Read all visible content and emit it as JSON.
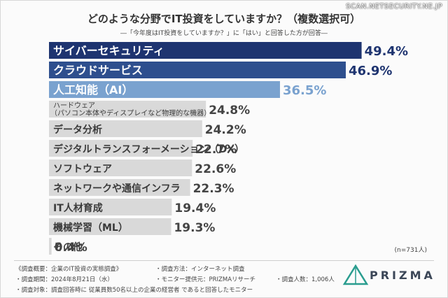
{
  "watermark": "SCAN.NETSECURITY.NE.JP",
  "chart_data": {
    "type": "bar",
    "orientation": "horizontal",
    "title": "どのような分野でIT投資をしていますか？（複数選択可）",
    "subtitle": "―「今年度はIT投資をしていますか？」に「はい」と回答した方が回答―",
    "categories": [
      "サイバーセキュリティ",
      "クラウドサービス",
      "人工知能（AI）",
      "ハードウェア|（パソコン本体やディスプレイなど物理的な機器）",
      "データ分析",
      "デジタルトランスフォーメーション（DX）",
      "ソフトウェア",
      "ネットワークや通信インフラ",
      "IT人材育成",
      "機械学習（ML）",
      "その他"
    ],
    "values": [
      49.4,
      46.9,
      36.5,
      24.8,
      24.2,
      22.7,
      22.6,
      22.3,
      19.4,
      19.3,
      0.4
    ],
    "value_labels": [
      "49.4%",
      "46.9%",
      "36.5%",
      "24.8%",
      "24.2%",
      "22.7%",
      "22.6%",
      "22.3%",
      "19.4%",
      "19.3%",
      "0.4%"
    ],
    "xlim": [
      0,
      50
    ],
    "colors": {
      "top1": "#1e3470",
      "top2": "#2e4f8e",
      "top3": "#7aa2cf",
      "rest": "#d9d9d9",
      "label_light": "#ffffff",
      "label_dark": "#3a3a3a"
    },
    "sample_note": "(n=731人)"
  },
  "footer": {
    "overview": "《調査概要：企業のIT投資の実態調査》",
    "method": "・調査方法：インターネット調査",
    "period": "・調査期間：2024年8月21日（水）",
    "provider": "・モニター提供元：PRIZMAリサーチ",
    "respondents": "・調査人数：1,006人",
    "target": "・調査対象：調査回答時に 従業員数50名以上の企業の経営者 であると回答したモニター"
  },
  "logo": {
    "text": "PRIZMA",
    "icon": "prism-triangle-icon"
  }
}
